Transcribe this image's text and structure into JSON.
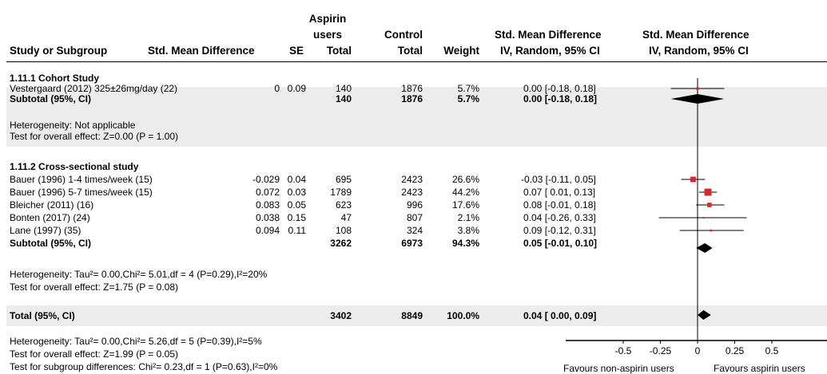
{
  "header": {
    "study": "Study or Subgroup",
    "smd": "Std. Mean Difference",
    "se": "SE",
    "asp": [
      "Aspirin",
      "users",
      "Total"
    ],
    "ctl": [
      "Control",
      "Total"
    ],
    "weight": "Weight",
    "ci": [
      "Std. Mean Difference",
      "IV, Random, 95% CI"
    ],
    "plot": [
      "Std. Mean Difference",
      "IV, Random, 95% CI"
    ]
  },
  "groups": [
    {
      "title": "1.11.1 Cohort Study",
      "studies": [
        {
          "name": "Vestergaard (2012) 325±26mg/day (22)",
          "smd": "0",
          "se": "0.09",
          "asp": "140",
          "ctl": "1876",
          "weight": "5.7%",
          "ci": "0.00 [-0.18, 0.18]"
        }
      ],
      "subtotal": {
        "label": "Subtotal (95%, CI)",
        "asp": "140",
        "ctl": "1876",
        "weight": "5.7%",
        "ci": "0.00 [-0.18, 0.18]"
      },
      "notes": [
        "Heterogeneity: Not applicable",
        "Test for overall effect: Z=0.00 (P = 1.00)"
      ]
    },
    {
      "title": "1.11.2 Cross-sectional study",
      "studies": [
        {
          "name": "Bauer (1996) 1-4 times/week (15)",
          "smd": "-0.029",
          "se": "0.04",
          "asp": "695",
          "ctl": "2423",
          "weight": "26.6%",
          "ci": "-0.03 [-0.11, 0.05]"
        },
        {
          "name": "Bauer (1996) 5-7 times/week (15)",
          "smd": "0.072",
          "se": "0.03",
          "asp": "1789",
          "ctl": "2423",
          "weight": "44.2%",
          "ci": "0.07 [ 0.01, 0.13]"
        },
        {
          "name": "Bleicher (2011) (16)",
          "smd": "0.083",
          "se": "0.05",
          "asp": "623",
          "ctl": "996",
          "weight": "17.6%",
          "ci": "0.08 [-0.01, 0.18]"
        },
        {
          "name": "Bonten (2017) (24)",
          "smd": "0.038",
          "se": "0.15",
          "asp": "47",
          "ctl": "807",
          "weight": "2.1%",
          "ci": "0.04 [-0.26, 0.33]"
        },
        {
          "name": "Lane (1997) (35)",
          "smd": "0.094",
          "se": "0.11",
          "asp": "108",
          "ctl": "324",
          "weight": "3.8%",
          "ci": "0.09 [-0.12, 0.31]"
        }
      ],
      "subtotal": {
        "label": "Subtotal (95%, CI)",
        "asp": "3262",
        "ctl": "6973",
        "weight": "94.3%",
        "ci": "0.05 [-0.01, 0.10]"
      },
      "notes": [
        "Heterogeneity: Tau²= 0.00,Chi²= 5.01,df = 4 (P=0.29),I²=20%",
        "Test for overall effect: Z=1.75 (P = 0.08)"
      ]
    }
  ],
  "total": {
    "label": "Total (95%, CI)",
    "asp": "3402",
    "ctl": "8849",
    "weight": "100.0%",
    "ci": "0.04 [ 0.00, 0.09]"
  },
  "footer": [
    "Heterogeneity: Tau²= 0.00,Chi²= 5.26,df = 5 (P=0.39),I²=5%",
    "Test for overall effect: Z=1.99 (P = 0.05)",
    "Test for subgroup differences: Chi²= 0.23,df = 1 (P=0.63),I²=0%"
  ],
  "axis_labels": {
    "left": "Favours non-aspirin users",
    "right": "Favours aspirin users"
  },
  "colors": {
    "study_marker": "#d22b2b",
    "band": "#ececec",
    "diamond": "#000000"
  },
  "chart_data": {
    "type": "forest",
    "xlim": [
      -0.6,
      0.6
    ],
    "xticks": [
      -0.5,
      -0.25,
      0,
      0.25,
      0.5
    ],
    "xtick_labels": [
      "-0.5",
      "-0.25",
      "0",
      "0.25",
      "0.5"
    ],
    "studies": [
      {
        "name": "Vestergaard (2012) 325±26mg/day (22)",
        "est": 0.0,
        "lo": -0.18,
        "hi": 0.18,
        "weight": 5.7
      },
      {
        "name": "Bauer (1996) 1-4 times/week (15)",
        "est": -0.03,
        "lo": -0.11,
        "hi": 0.05,
        "weight": 26.6
      },
      {
        "name": "Bauer (1996) 5-7 times/week (15)",
        "est": 0.07,
        "lo": 0.01,
        "hi": 0.13,
        "weight": 44.2
      },
      {
        "name": "Bleicher (2011) (16)",
        "est": 0.08,
        "lo": -0.01,
        "hi": 0.18,
        "weight": 17.6
      },
      {
        "name": "Bonten (2017) (24)",
        "est": 0.04,
        "lo": -0.26,
        "hi": 0.33,
        "weight": 2.1
      },
      {
        "name": "Lane (1997) (35)",
        "est": 0.09,
        "lo": -0.12,
        "hi": 0.31,
        "weight": 3.8
      }
    ],
    "pooled": [
      {
        "name": "Subtotal 1.11.1",
        "est": 0.0,
        "lo": -0.18,
        "hi": 0.18
      },
      {
        "name": "Subtotal 1.11.2",
        "est": 0.05,
        "lo": -0.01,
        "hi": 0.1
      },
      {
        "name": "Total",
        "est": 0.04,
        "lo": 0.0,
        "hi": 0.09
      }
    ]
  }
}
